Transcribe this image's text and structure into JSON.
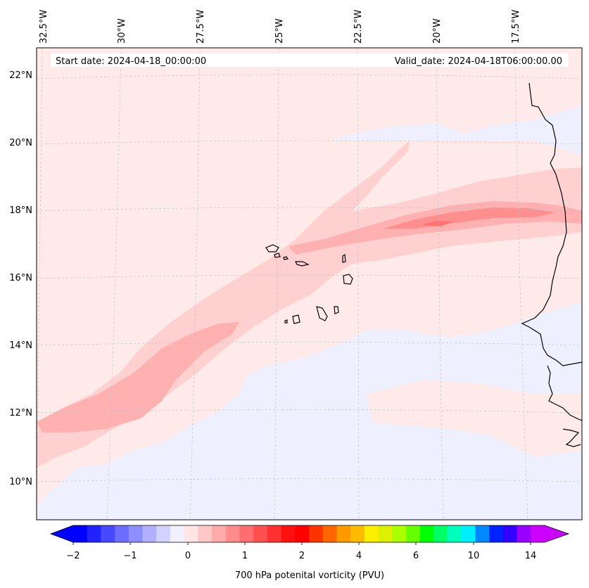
{
  "map": {
    "start_date": "Start date: 2024-04-18_00:00:00",
    "valid_date": "Valid_date: 2024-04-18T06:00:00.00",
    "lon_labels": [
      "32.5°W",
      "30°W",
      "27.5°W",
      "25°W",
      "22.5°W",
      "20°W",
      "17.5°W"
    ],
    "lat_labels": [
      "22°N",
      "20°N",
      "18°N",
      "16°N",
      "14°N",
      "12°N",
      "10°N"
    ],
    "background_color": "#eef0ff",
    "coastline_color": "#000000"
  },
  "colorbar": {
    "label": "700 hPa potenital vorticity (PVU)",
    "tick_labels": [
      "−2",
      "−1",
      "0",
      "1",
      "2",
      "4",
      "6",
      "10",
      "14"
    ],
    "colors": [
      "#0000ff",
      "#2222ff",
      "#4848ff",
      "#6c6cff",
      "#8e8eff",
      "#b0b0ff",
      "#d2d2ff",
      "#f0f0ff",
      "#ffe6e6",
      "#ffc8c8",
      "#ffabab",
      "#ff8c8c",
      "#ff6e6e",
      "#ff5050",
      "#ff3030",
      "#ff1010",
      "#ff0000",
      "#ff3300",
      "#ff6600",
      "#ff9900",
      "#ffbb00",
      "#ffee00",
      "#ddf000",
      "#aaff00",
      "#66ff00",
      "#00ff00",
      "#00ff66",
      "#00ffbb",
      "#00eeff",
      "#0088ff",
      "#0022ff",
      "#3300ff",
      "#9900ff",
      "#cc00ff"
    ],
    "extend_left_color": "#0000ff",
    "extend_right_color": "#cc00ff"
  }
}
